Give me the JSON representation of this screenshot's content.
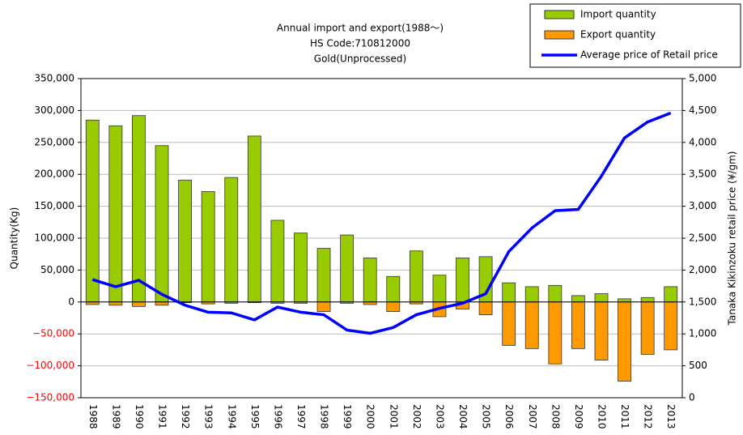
{
  "chart_data": {
    "type": "bar_line",
    "title": [
      "Annual import and export(1988～)",
      "HS Code:710812000",
      "Gold(Unprocessed)"
    ],
    "ylabel": "Quantity(Kg)",
    "y2label": "Tanaka Kikinzoku retail price (¥/gm)",
    "categories": [
      "1988",
      "1989",
      "1990",
      "1991",
      "1992",
      "1993",
      "1994",
      "1995",
      "1996",
      "1997",
      "1998",
      "1999",
      "2000",
      "2001",
      "2002",
      "2003",
      "2004",
      "2005",
      "2006",
      "2007",
      "2008",
      "2009",
      "2010",
      "2011",
      "2012",
      "2013"
    ],
    "series": [
      {
        "name": "Import quantity",
        "color": "#99cc00",
        "type": "bar",
        "values": [
          285000,
          276000,
          292000,
          245000,
          191000,
          173000,
          195000,
          260000,
          128000,
          108000,
          84000,
          105000,
          69000,
          40000,
          80000,
          42000,
          69000,
          71000,
          30000,
          24000,
          26000,
          10000,
          13000,
          5000,
          7000,
          24000
        ]
      },
      {
        "name": "Export quantity",
        "color": "#ff9900",
        "type": "bar",
        "values": [
          -4000,
          -5000,
          -7000,
          -5000,
          -1000,
          -3000,
          -2000,
          -1000,
          -2000,
          -2000,
          -15000,
          -2000,
          -4000,
          -15000,
          -3000,
          -23000,
          -11000,
          -20000,
          -68000,
          -73000,
          -97000,
          -73000,
          -91000,
          -124000,
          -82000,
          -75000
        ]
      },
      {
        "name": "Average price of Retail price",
        "color": "#0000ff",
        "type": "line",
        "axis": "y2",
        "values": [
          1850,
          1740,
          1840,
          1620,
          1450,
          1340,
          1330,
          1220,
          1420,
          1340,
          1300,
          1060,
          1010,
          1100,
          1300,
          1400,
          1480,
          1630,
          2290,
          2660,
          2930,
          2950,
          3470,
          4070,
          4320,
          4460
        ]
      }
    ],
    "ylim": [
      -150000,
      350000
    ],
    "yticks": [
      {
        "value": -150000,
        "label": "−150,000"
      },
      {
        "value": -100000,
        "label": "−100,000"
      },
      {
        "value": -50000,
        "label": "−50,000"
      },
      0,
      {
        "value": 50000,
        "label": "50,000"
      },
      {
        "value": 100000,
        "label": "100,000"
      },
      {
        "value": 150000,
        "label": "150,000"
      },
      {
        "value": 200000,
        "label": "200,000"
      },
      {
        "value": 250000,
        "label": "250,000"
      },
      {
        "value": 300000,
        "label": "300,000"
      },
      {
        "value": 350000,
        "label": "350,000"
      }
    ],
    "y2lim": [
      0,
      5000
    ],
    "y2ticks": [
      0,
      500,
      {
        "value": 1000,
        "label": "1,000"
      },
      {
        "value": 1500,
        "label": "1,500"
      },
      {
        "value": 2000,
        "label": "2,000"
      },
      {
        "value": 2500,
        "label": "2,500"
      },
      {
        "value": 3000,
        "label": "3,000"
      },
      {
        "value": 3500,
        "label": "3,500"
      },
      {
        "value": 4000,
        "label": "4,000"
      },
      {
        "value": 4500,
        "label": "4,500"
      },
      {
        "value": 5000,
        "label": "5,000"
      }
    ],
    "grid": true,
    "legend": "top-right"
  }
}
